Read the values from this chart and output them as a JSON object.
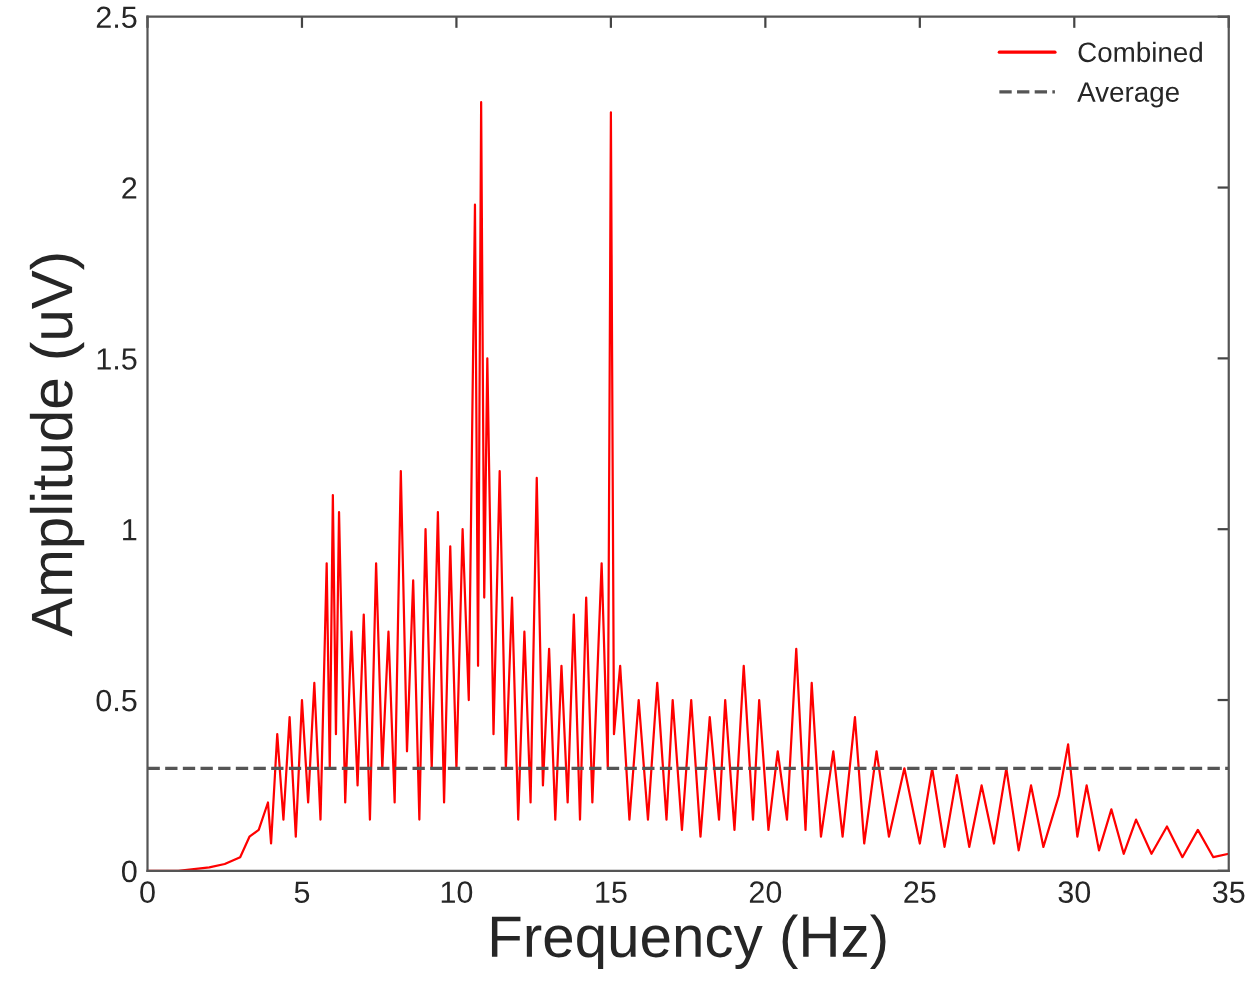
{
  "chart_data": {
    "type": "line",
    "xlabel": "Frequency (Hz)",
    "ylabel": "Amplitude (uV)",
    "x": [
      0,
      1,
      2,
      2.5,
      3,
      3.3,
      3.6,
      3.9,
      4.0,
      4.2,
      4.4,
      4.6,
      4.8,
      5.0,
      5.2,
      5.4,
      5.6,
      5.8,
      5.9,
      6.0,
      6.1,
      6.2,
      6.4,
      6.6,
      6.8,
      7.0,
      7.2,
      7.4,
      7.6,
      7.8,
      8.0,
      8.2,
      8.4,
      8.6,
      8.8,
      9.0,
      9.2,
      9.4,
      9.6,
      9.8,
      10.0,
      10.2,
      10.4,
      10.6,
      10.7,
      10.8,
      10.9,
      11.0,
      11.2,
      11.4,
      11.6,
      11.8,
      12.0,
      12.2,
      12.4,
      12.6,
      12.8,
      13.0,
      13.2,
      13.4,
      13.6,
      13.8,
      14.0,
      14.2,
      14.4,
      14.7,
      14.9,
      15.0,
      15.1,
      15.3,
      15.6,
      15.9,
      16.2,
      16.5,
      16.8,
      17.0,
      17.3,
      17.6,
      17.9,
      18.2,
      18.5,
      18.7,
      19.0,
      19.3,
      19.6,
      19.8,
      20.1,
      20.4,
      20.7,
      21.0,
      21.3,
      21.5,
      21.8,
      22.2,
      22.5,
      22.9,
      23.2,
      23.6,
      24.0,
      24.5,
      25.0,
      25.4,
      25.8,
      26.2,
      26.6,
      27.0,
      27.4,
      27.8,
      28.2,
      28.6,
      29.0,
      29.5,
      29.8,
      30.1,
      30.4,
      30.8,
      31.2,
      31.6,
      32.0,
      32.5,
      33.0,
      33.5,
      34.0,
      34.5,
      35.0
    ],
    "series": [
      {
        "name": "Combined",
        "color": "#ff0000",
        "values": [
          0,
          0,
          0.01,
          0.02,
          0.04,
          0.1,
          0.12,
          0.2,
          0.08,
          0.4,
          0.15,
          0.45,
          0.1,
          0.5,
          0.2,
          0.55,
          0.15,
          0.9,
          0.3,
          1.1,
          0.4,
          1.05,
          0.2,
          0.7,
          0.25,
          0.75,
          0.15,
          0.9,
          0.3,
          0.7,
          0.2,
          1.17,
          0.35,
          0.85,
          0.15,
          1.0,
          0.3,
          1.05,
          0.2,
          0.95,
          0.3,
          1.0,
          0.5,
          1.95,
          0.6,
          2.25,
          0.8,
          1.5,
          0.4,
          1.17,
          0.3,
          0.8,
          0.15,
          0.7,
          0.2,
          1.15,
          0.25,
          0.65,
          0.15,
          0.6,
          0.2,
          0.75,
          0.15,
          0.8,
          0.2,
          0.9,
          0.3,
          2.22,
          0.4,
          0.6,
          0.15,
          0.5,
          0.15,
          0.55,
          0.15,
          0.5,
          0.12,
          0.5,
          0.1,
          0.45,
          0.15,
          0.5,
          0.12,
          0.6,
          0.15,
          0.5,
          0.12,
          0.35,
          0.15,
          0.65,
          0.12,
          0.55,
          0.1,
          0.35,
          0.1,
          0.45,
          0.08,
          0.35,
          0.1,
          0.3,
          0.08,
          0.3,
          0.07,
          0.28,
          0.07,
          0.25,
          0.08,
          0.3,
          0.06,
          0.25,
          0.07,
          0.22,
          0.37,
          0.1,
          0.25,
          0.06,
          0.18,
          0.05,
          0.15,
          0.05,
          0.13,
          0.04,
          0.12,
          0.04,
          0.05
        ]
      }
    ],
    "ref_lines": [
      {
        "axis": "y",
        "value": 0.3,
        "label": "Average",
        "color": "#555555",
        "line_style": "dashed"
      }
    ],
    "xlim": [
      0,
      35
    ],
    "xticks": [
      0,
      5,
      10,
      15,
      20,
      25,
      30,
      35
    ],
    "ylim": [
      0,
      2.5
    ],
    "yticks": [
      0,
      0.5,
      1,
      1.5,
      2,
      2.5
    ],
    "grid": false,
    "legend": "top right",
    "line_style": "solid",
    "marker": "none"
  }
}
